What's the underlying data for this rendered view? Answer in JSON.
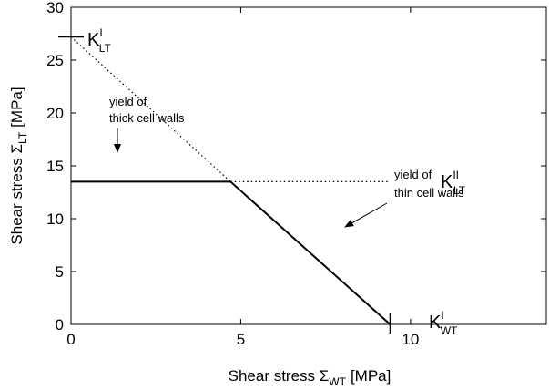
{
  "chart_data": {
    "type": "line",
    "x_label": {
      "main": "Shear stress Σ",
      "sub": "WT",
      "unit": "[MPa]"
    },
    "y_label": {
      "main": "Shear stress Σ",
      "sub": "LT",
      "unit": "[MPa]"
    },
    "xlim": [
      0,
      14
    ],
    "ylim": [
      0,
      30
    ],
    "xticks": [
      0,
      5,
      10
    ],
    "yticks": [
      0,
      5,
      10,
      15,
      20,
      25,
      30
    ],
    "series": [
      {
        "style": "solid",
        "color": "#000000",
        "x": [
          0,
          4.7,
          9.4
        ],
        "values": [
          13.5,
          13.5,
          0
        ]
      },
      {
        "style": "dotted",
        "color": "#000000",
        "x": [
          0,
          4.7
        ],
        "values": [
          27.2,
          13.5
        ]
      },
      {
        "style": "dotted",
        "color": "#000000",
        "x": [
          4.7,
          9.4
        ],
        "values": [
          13.5,
          13.5
        ]
      }
    ],
    "annotations": {
      "k_lt_1": {
        "base": "K",
        "sup": "I",
        "sub": "LT"
      },
      "k_lt_2": {
        "base": "K",
        "sup": "II",
        "sub": "LT"
      },
      "k_wt_1": {
        "base": "K",
        "sup": "I",
        "sub": "WT"
      },
      "thick": [
        "yield of",
        "thick cell walls"
      ],
      "thin": [
        "yield of",
        "thin cell walls"
      ]
    }
  }
}
